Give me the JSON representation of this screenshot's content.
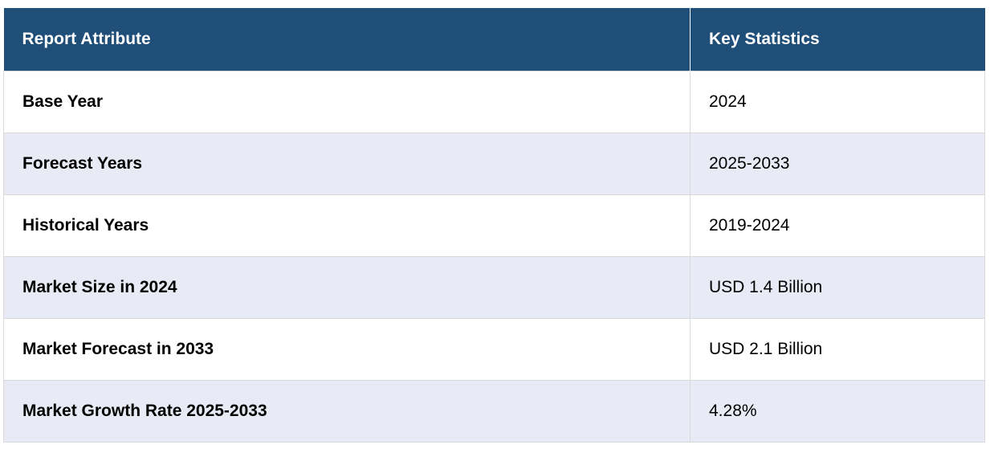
{
  "table": {
    "headers": [
      "Report Attribute",
      "Key Statistics"
    ],
    "rows": [
      {
        "attribute": "Base Year",
        "value": "2024"
      },
      {
        "attribute": "Forecast Years",
        "value": "2025-2033"
      },
      {
        "attribute": "Historical Years",
        "value": "2019-2024"
      },
      {
        "attribute": "Market Size in 2024",
        "value": "USD 1.4 Billion"
      },
      {
        "attribute": "Market Forecast in 2033",
        "value": "USD 2.1 Billion"
      },
      {
        "attribute": "Market Growth Rate 2025-2033",
        "value": "4.28%"
      }
    ]
  },
  "colors": {
    "header_bg": "#1f4e79",
    "header_text": "#ffffff",
    "stripe_bg": "#e8eaf5",
    "border": "#d9d9d9"
  }
}
